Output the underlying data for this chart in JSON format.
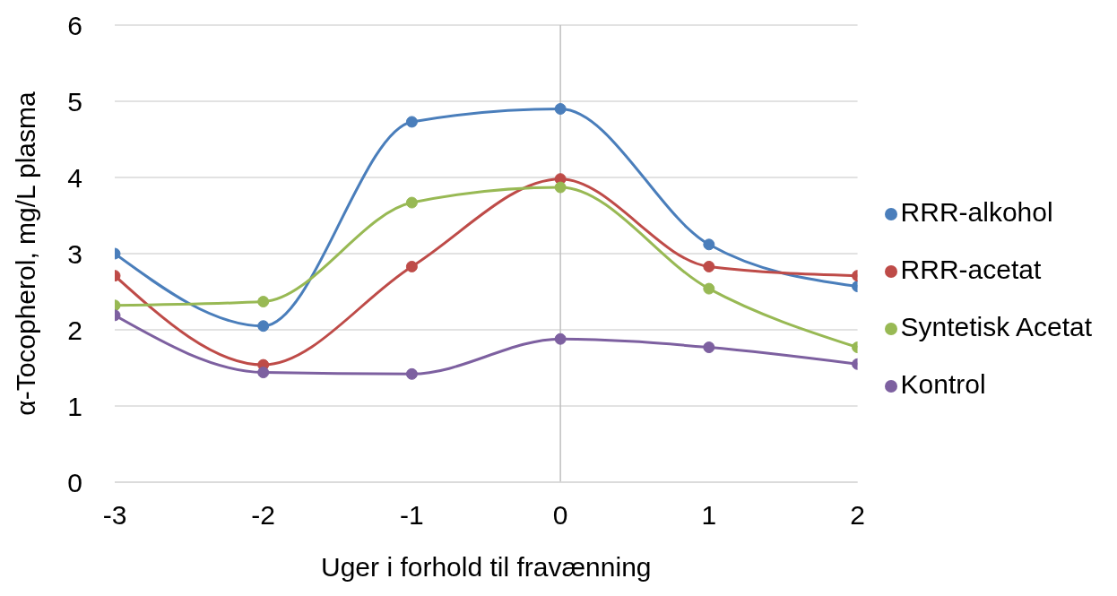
{
  "chart_data": {
    "type": "line",
    "xlabel": "Uger i forhold til fravænning",
    "ylabel": "α-Tocopherol, mg/L plasma",
    "x": [
      -3,
      -2,
      -1,
      0,
      1,
      2
    ],
    "series": [
      {
        "name": "RRR-alkohol",
        "color": "#4a7ebb",
        "values": [
          3.0,
          2.05,
          4.73,
          4.9,
          3.12,
          2.57
        ]
      },
      {
        "name": "RRR-acetat",
        "color": "#be4b48",
        "values": [
          2.71,
          1.54,
          2.83,
          3.98,
          2.83,
          2.71
        ]
      },
      {
        "name": "Syntetisk Acetat",
        "color": "#98b954",
        "values": [
          2.32,
          2.37,
          3.67,
          3.87,
          2.54,
          1.77
        ]
      },
      {
        "name": "Kontrol",
        "color": "#7d60a0",
        "values": [
          2.19,
          1.44,
          1.42,
          1.88,
          1.77,
          1.55
        ]
      }
    ],
    "xlim": [
      -3,
      2
    ],
    "xticks": [
      -3,
      -2,
      -1,
      0,
      1,
      2
    ],
    "ylim": [
      0,
      6
    ],
    "yticks": [
      0,
      1,
      2,
      3,
      4,
      5,
      6
    ],
    "ref_lines": [
      {
        "axis": "x",
        "value": 0,
        "color": "#bfbfbf"
      }
    ],
    "grid": "y",
    "legend": "right",
    "marker": "circle",
    "line_style": "solid"
  }
}
